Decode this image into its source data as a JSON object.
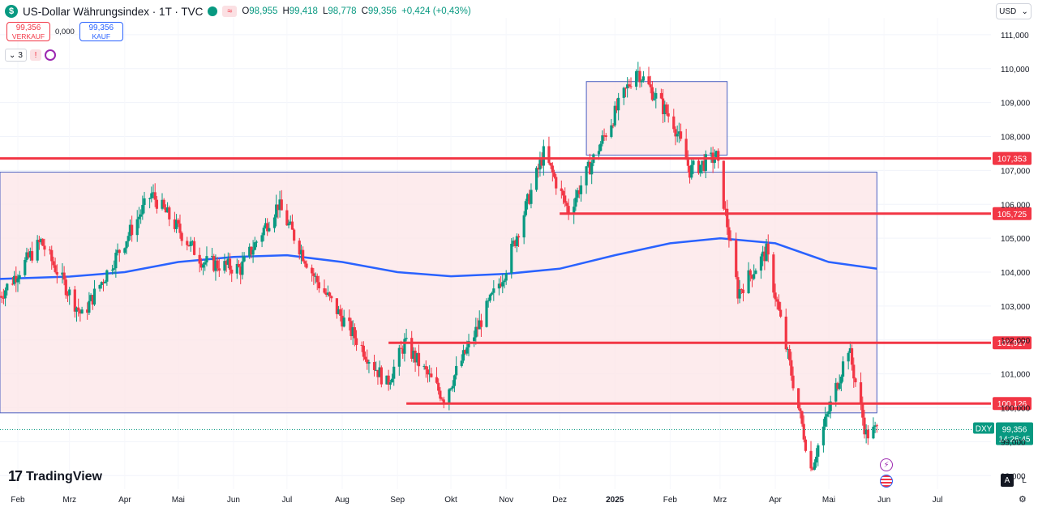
{
  "header": {
    "symbol_icon": "dollar-sign-icon",
    "title": "US-Dollar Währungsindex · 1T · TVC",
    "wave_glyph": "≈",
    "ohlc": {
      "o_label": "O",
      "o": "98,955",
      "h_label": "H",
      "h": "99,418",
      "l_label": "L",
      "l": "98,778",
      "c_label": "C",
      "c": "99,356",
      "change": "+0,424 (+0,43%)"
    }
  },
  "trade": {
    "sell_price": "99,356",
    "sell_label": "VERKAUF",
    "spread": "0,000",
    "buy_price": "99,356",
    "buy_label": "KAUF"
  },
  "indicators": {
    "count": "3",
    "alert_glyph": "!"
  },
  "currency_button": "USD",
  "branding": {
    "logo_mark": "17",
    "logo_text": "TradingView"
  },
  "bottom_controls": {
    "auto": "A",
    "log": "L",
    "settings_icon": "gear-icon"
  },
  "colors": {
    "up": "#089981",
    "down": "#f23645",
    "ma": "#2962ff",
    "zone_fill": "#fde6e8",
    "zone_stroke": "#4a5fc1",
    "level": "#f23645"
  },
  "chart_data": {
    "type": "candlestick",
    "symbol": "DXY",
    "y_axis": {
      "min": 97.6,
      "max": 111.5,
      "ticks": [
        "98,000",
        "99,000",
        "100,000",
        "101,000",
        "102,000",
        "103,000",
        "104,000",
        "105,000",
        "106,000",
        "107,000",
        "108,000",
        "109,000",
        "110,000",
        "111,000"
      ]
    },
    "x_axis": {
      "labels": [
        "Feb",
        "Mrz",
        "Apr",
        "Mai",
        "Jun",
        "Jul",
        "Aug",
        "Sep",
        "Okt",
        "Nov",
        "Dez",
        "2025",
        "Feb",
        "Mrz",
        "Apr",
        "Mai",
        "Jun",
        "Jul"
      ],
      "start": "2024-01-22",
      "end": "2025-07-31"
    },
    "last_price": {
      "symbol": "DXY",
      "value": "99,356",
      "countdown": "14:26:45",
      "y": 99.356
    },
    "horizontal_levels": [
      {
        "value": 107.353,
        "label": "107,353",
        "x_start": "2024-01-22"
      },
      {
        "value": 105.725,
        "label": "105,725",
        "x_start": "2024-12-01"
      },
      {
        "value": 101.917,
        "label": "101,917",
        "x_start": "2024-08-27"
      },
      {
        "value": 100.126,
        "label": "100,126",
        "x_start": "2024-09-06"
      }
    ],
    "zones": [
      {
        "x_start": "2024-01-22",
        "x_end": "2025-05-28",
        "y_low": 99.85,
        "y_high": 106.95
      },
      {
        "x_start": "2024-12-16",
        "x_end": "2025-03-05",
        "y_low": 107.45,
        "y_high": 109.62
      }
    ],
    "moving_average": {
      "points": [
        [
          "2024-01-22",
          103.8
        ],
        [
          "2024-03-01",
          103.87
        ],
        [
          "2024-04-01",
          104.0
        ],
        [
          "2024-05-01",
          104.3
        ],
        [
          "2024-06-01",
          104.45
        ],
        [
          "2024-07-01",
          104.5
        ],
        [
          "2024-08-01",
          104.3
        ],
        [
          "2024-09-01",
          104.0
        ],
        [
          "2024-10-01",
          103.88
        ],
        [
          "2024-11-01",
          103.95
        ],
        [
          "2024-12-01",
          104.1
        ],
        [
          "2025-01-01",
          104.5
        ],
        [
          "2025-02-01",
          104.85
        ],
        [
          "2025-03-01",
          105.0
        ],
        [
          "2025-04-01",
          104.85
        ],
        [
          "2025-05-01",
          104.3
        ],
        [
          "2025-05-28",
          104.1
        ]
      ]
    },
    "candle_anchors": [
      [
        "2024-01-22",
        103.3
      ],
      [
        "2024-02-14",
        104.9
      ],
      [
        "2024-03-08",
        102.7
      ],
      [
        "2024-04-16",
        106.3
      ],
      [
        "2024-05-15",
        104.3
      ],
      [
        "2024-06-05",
        104.1
      ],
      [
        "2024-06-26",
        106.0
      ],
      [
        "2024-07-17",
        103.8
      ],
      [
        "2024-08-26",
        100.7
      ],
      [
        "2024-09-05",
        101.9
      ],
      [
        "2024-09-27",
        100.3
      ],
      [
        "2024-10-31",
        104.0
      ],
      [
        "2024-11-22",
        107.5
      ],
      [
        "2024-12-06",
        105.8
      ],
      [
        "2025-01-13",
        110.0
      ],
      [
        "2025-02-03",
        108.4
      ],
      [
        "2025-02-12",
        107.0
      ],
      [
        "2025-02-27",
        107.4
      ],
      [
        "2025-03-11",
        103.4
      ],
      [
        "2025-03-27",
        104.6
      ],
      [
        "2025-04-21",
        98.2
      ],
      [
        "2025-05-12",
        101.8
      ],
      [
        "2025-05-22",
        99.2
      ],
      [
        "2025-05-28",
        99.356
      ]
    ]
  }
}
